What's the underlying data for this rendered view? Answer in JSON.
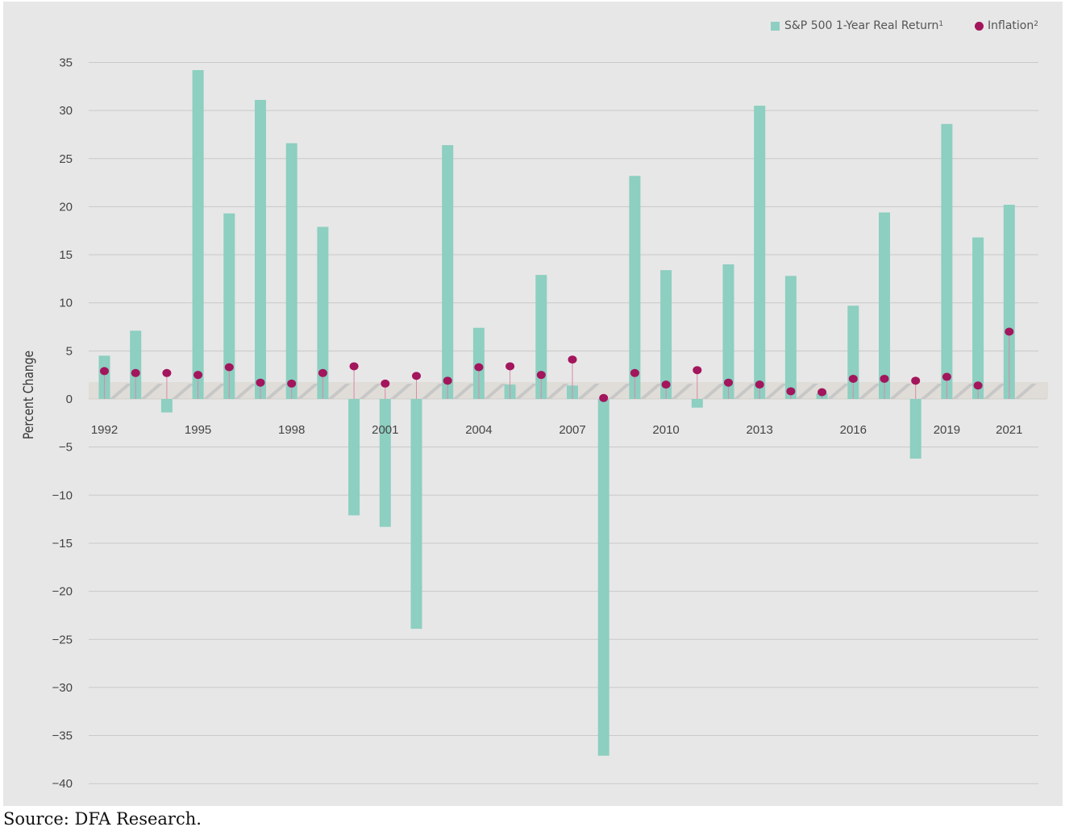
{
  "chart_data": {
    "type": "bar",
    "ylabel": "Percent Change",
    "ylim": [
      -40,
      35
    ],
    "yticks": [
      35,
      30,
      25,
      20,
      15,
      10,
      5,
      0,
      -5,
      -10,
      -15,
      -20,
      -25,
      -30,
      -35,
      -40
    ],
    "ytick_labels": [
      "35",
      "30",
      "25",
      "20",
      "15",
      "10",
      "5",
      "0",
      "−5",
      "−10",
      "−15",
      "−20",
      "−25",
      "−30",
      "−35",
      "−40"
    ],
    "categories": [
      "1992",
      "1993",
      "1994",
      "1995",
      "1996",
      "1997",
      "1998",
      "1999",
      "2000",
      "2001",
      "2002",
      "2003",
      "2004",
      "2005",
      "2006",
      "2007",
      "2008",
      "2009",
      "2010",
      "2011",
      "2012",
      "2013",
      "2014",
      "2015",
      "2016",
      "2017",
      "2018",
      "2019",
      "2020",
      "2021"
    ],
    "xtick_labels": [
      "1992",
      "1995",
      "1998",
      "2001",
      "2004",
      "2007",
      "2010",
      "2013",
      "2016",
      "2019",
      "2021"
    ],
    "legend_position": "top-right",
    "series": [
      {
        "name": "S&P 500 1-Year Real Return",
        "name_superscript": "1",
        "kind": "bar",
        "color": "#8dcfc0",
        "values": [
          4.5,
          7.1,
          -1.4,
          34.2,
          19.3,
          31.1,
          26.6,
          17.9,
          -12.1,
          -13.3,
          -23.9,
          26.4,
          7.4,
          1.5,
          12.9,
          1.4,
          -37.1,
          23.2,
          13.4,
          -0.9,
          14.0,
          30.5,
          12.8,
          0.6,
          9.7,
          19.4,
          -6.2,
          28.6,
          16.8,
          20.2
        ]
      },
      {
        "name": "Inflation",
        "name_superscript": "2",
        "kind": "dot",
        "color": "#a3155c",
        "values": [
          2.9,
          2.7,
          2.7,
          2.5,
          3.3,
          1.7,
          1.6,
          2.7,
          3.4,
          1.6,
          2.4,
          1.9,
          3.3,
          3.4,
          2.5,
          4.1,
          0.1,
          2.7,
          1.5,
          3.0,
          1.7,
          1.5,
          0.8,
          0.7,
          2.1,
          2.1,
          1.9,
          2.3,
          1.4,
          7.0
        ]
      }
    ]
  },
  "legend": {
    "bar_label": "S&P 500 1-Year Real Return",
    "bar_sup": "1",
    "dot_label": "Inflation",
    "dot_sup": "2"
  },
  "source": "Source: DFA Research."
}
